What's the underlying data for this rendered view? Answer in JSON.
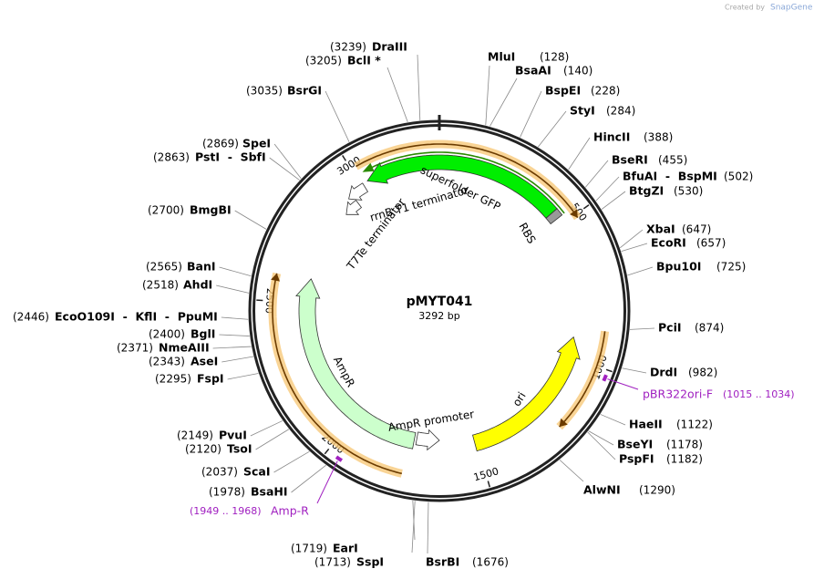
{
  "watermark": {
    "prefix": "Created by",
    "brand": "SnapGene"
  },
  "plasmid": {
    "name": "pMYT041",
    "length": "3292 bp"
  },
  "ticks": [
    "500",
    "1000",
    "1500",
    "2000",
    "2500",
    "3000"
  ],
  "sites": [
    {
      "name": "DraIII",
      "position": "(3239)"
    },
    {
      "name": "BclI *",
      "position": "(3205)"
    },
    {
      "name": "BsrGI",
      "position": "(3035)"
    },
    {
      "name": "SpeI",
      "position": "(2869)"
    },
    {
      "name": "PstI  -  SbfI",
      "position": "(2863)"
    },
    {
      "name": "BmgBI",
      "position": "(2700)"
    },
    {
      "name": "BanI",
      "position": "(2565)"
    },
    {
      "name": "AhdI",
      "position": "(2518)"
    },
    {
      "name": "EcoO109I  -  KflI  -  PpuMI",
      "position": "(2446)"
    },
    {
      "name": "BglI",
      "position": "(2400)"
    },
    {
      "name": "NmeAIII",
      "position": "(2371)"
    },
    {
      "name": "AseI",
      "position": "(2343)"
    },
    {
      "name": "FspI",
      "position": "(2295)"
    },
    {
      "name": "PvuI",
      "position": "(2149)"
    },
    {
      "name": "TsoI",
      "position": "(2120)"
    },
    {
      "name": "ScaI",
      "position": "(2037)"
    },
    {
      "name": "BsaHI",
      "position": "(1978)"
    },
    {
      "name": "EarI",
      "position": "(1719)"
    },
    {
      "name": "SspI",
      "position": "(1713)"
    },
    {
      "name": "MluI",
      "position": "(128)"
    },
    {
      "name": "BsaAI",
      "position": "(140)"
    },
    {
      "name": "BspEI",
      "position": "(228)"
    },
    {
      "name": "StyI",
      "position": "(284)"
    },
    {
      "name": "HincII",
      "position": "(388)"
    },
    {
      "name": "BseRI",
      "position": "(455)"
    },
    {
      "name": "BfuAI  -  BspMI",
      "position": "(502)"
    },
    {
      "name": "BtgZI",
      "position": "(530)"
    },
    {
      "name": "XbaI",
      "position": "(647)"
    },
    {
      "name": "EcoRI",
      "position": "(657)"
    },
    {
      "name": "Bpu10I",
      "position": "(725)"
    },
    {
      "name": "PciI",
      "position": "(874)"
    },
    {
      "name": "DrdI",
      "position": "(982)"
    },
    {
      "name": "HaeII",
      "position": "(1122)"
    },
    {
      "name": "BseYI",
      "position": "(1178)"
    },
    {
      "name": "PspFI",
      "position": "(1182)"
    },
    {
      "name": "AlwNI",
      "position": "(1290)"
    },
    {
      "name": "BsrBI",
      "position": "(1676)"
    }
  ],
  "features": [
    {
      "label": "superfolder GFP"
    },
    {
      "label": "RBS"
    },
    {
      "label": "rrnB T1 terminator"
    },
    {
      "label": "T7Te terminator"
    },
    {
      "label": "ori"
    },
    {
      "label": "AmpR"
    },
    {
      "label": "AmpR promoter"
    }
  ],
  "primers": [
    {
      "label": "pBR322ori-F",
      "range": "(1015 .. 1034)"
    },
    {
      "label": "Amp-R",
      "range": "(1949 .. 1968)"
    }
  ]
}
